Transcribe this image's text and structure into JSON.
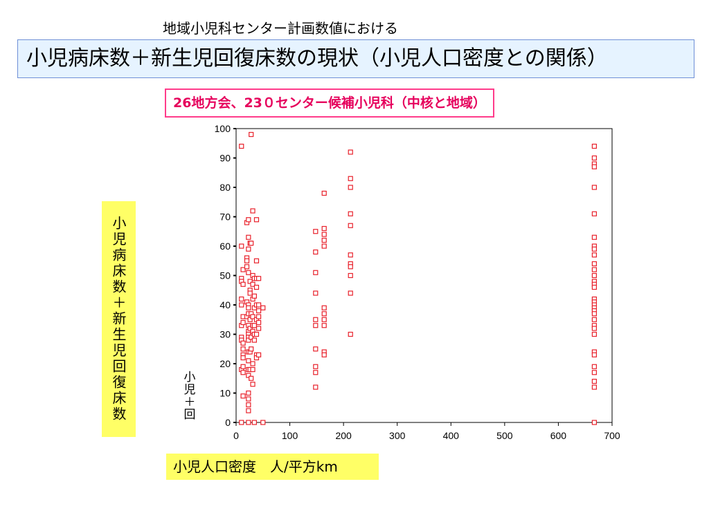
{
  "header": {
    "supertitle": "地域小児科センター計画数値における",
    "title": "小児病床数＋新生児回復床数の現状（小児人口密度との関係）",
    "subtitle": "26地方会、23０センター候補小児科（中核と地域）"
  },
  "labels": {
    "ylabel": "小児病床数＋新生児回復床数",
    "ylabel_inner": "小児＋回",
    "xlabel": "小児人口密度　人/平方km"
  },
  "colors": {
    "marker": "#e8202a",
    "title_bg": "#e6f3ff",
    "subtitle_text": "#e6005c",
    "label_bg": "#ffff66"
  },
  "chart_data": {
    "type": "scatter",
    "xlim": [
      0,
      700
    ],
    "ylim": [
      0,
      100
    ],
    "xticks": [
      "0",
      "100",
      "200",
      "300",
      "400",
      "500",
      "600",
      "700"
    ],
    "yticks": [
      "0",
      "10",
      "20",
      "30",
      "40",
      "50",
      "60",
      "70",
      "80",
      "90",
      "100"
    ],
    "grid": false,
    "marker": "open-square",
    "series": [
      {
        "points": [
          [
            10,
            94
          ],
          [
            10,
            60
          ],
          [
            10,
            49
          ],
          [
            10,
            48
          ],
          [
            10,
            42
          ],
          [
            10,
            40
          ],
          [
            10,
            33
          ],
          [
            10,
            29
          ],
          [
            10,
            28
          ],
          [
            10,
            18
          ],
          [
            10,
            0
          ],
          [
            13,
            52
          ],
          [
            13,
            47
          ],
          [
            13,
            36
          ],
          [
            13,
            34
          ],
          [
            13,
            27
          ],
          [
            13,
            25
          ],
          [
            13,
            23
          ],
          [
            13,
            22
          ],
          [
            13,
            19
          ],
          [
            13,
            17
          ],
          [
            13,
            9
          ],
          [
            20,
            68
          ],
          [
            20,
            56
          ],
          [
            20,
            55
          ],
          [
            20,
            53
          ],
          [
            20,
            41
          ],
          [
            20,
            36
          ],
          [
            23,
            69
          ],
          [
            23,
            63
          ],
          [
            23,
            59
          ],
          [
            23,
            51
          ],
          [
            23,
            40
          ],
          [
            23,
            39
          ],
          [
            23,
            37
          ],
          [
            23,
            33
          ],
          [
            23,
            31
          ],
          [
            23,
            30
          ],
          [
            23,
            29
          ],
          [
            23,
            28
          ],
          [
            23,
            24
          ],
          [
            23,
            21
          ],
          [
            23,
            18
          ],
          [
            23,
            16
          ],
          [
            23,
            10
          ],
          [
            23,
            8
          ],
          [
            23,
            6
          ],
          [
            23,
            4
          ],
          [
            23,
            0
          ],
          [
            26,
            61
          ],
          [
            26,
            48
          ],
          [
            26,
            45
          ],
          [
            26,
            44
          ],
          [
            26,
            35
          ],
          [
            26,
            32
          ],
          [
            26,
            24
          ],
          [
            26,
            18
          ],
          [
            28,
            98
          ],
          [
            28,
            61
          ],
          [
            28,
            37
          ],
          [
            28,
            29
          ],
          [
            28,
            25
          ],
          [
            28,
            15
          ],
          [
            31,
            72
          ],
          [
            31,
            50
          ],
          [
            31,
            47
          ],
          [
            31,
            42
          ],
          [
            31,
            36
          ],
          [
            31,
            33
          ],
          [
            31,
            31
          ],
          [
            31,
            20
          ],
          [
            31,
            18
          ],
          [
            31,
            13
          ],
          [
            34,
            49
          ],
          [
            34,
            43
          ],
          [
            34,
            39
          ],
          [
            34,
            33
          ],
          [
            34,
            30
          ],
          [
            34,
            28
          ],
          [
            34,
            0
          ],
          [
            38,
            69
          ],
          [
            38,
            55
          ],
          [
            38,
            49
          ],
          [
            38,
            46
          ],
          [
            38,
            40
          ],
          [
            38,
            35
          ],
          [
            38,
            30
          ],
          [
            38,
            23
          ],
          [
            38,
            22
          ],
          [
            42,
            49
          ],
          [
            42,
            40
          ],
          [
            42,
            38
          ],
          [
            42,
            36
          ],
          [
            42,
            34
          ],
          [
            42,
            32
          ],
          [
            42,
            23
          ],
          [
            50,
            39
          ],
          [
            50,
            0
          ],
          [
            148,
            65
          ],
          [
            148,
            58
          ],
          [
            148,
            51
          ],
          [
            148,
            44
          ],
          [
            148,
            35
          ],
          [
            148,
            33
          ],
          [
            148,
            25
          ],
          [
            148,
            19
          ],
          [
            148,
            17
          ],
          [
            148,
            12
          ],
          [
            164,
            78
          ],
          [
            164,
            66
          ],
          [
            164,
            64
          ],
          [
            164,
            62
          ],
          [
            164,
            60
          ],
          [
            164,
            39
          ],
          [
            164,
            37
          ],
          [
            164,
            35
          ],
          [
            164,
            33
          ],
          [
            164,
            24
          ],
          [
            164,
            23
          ],
          [
            213,
            92
          ],
          [
            213,
            83
          ],
          [
            213,
            80
          ],
          [
            213,
            71
          ],
          [
            213,
            67
          ],
          [
            213,
            57
          ],
          [
            213,
            54
          ],
          [
            213,
            53
          ],
          [
            213,
            50
          ],
          [
            213,
            44
          ],
          [
            213,
            30
          ],
          [
            667,
            94
          ],
          [
            667,
            90
          ],
          [
            667,
            88
          ],
          [
            667,
            87
          ],
          [
            667,
            80
          ],
          [
            667,
            71
          ],
          [
            667,
            63
          ],
          [
            667,
            60
          ],
          [
            667,
            59
          ],
          [
            667,
            57
          ],
          [
            667,
            54
          ],
          [
            667,
            52
          ],
          [
            667,
            50
          ],
          [
            667,
            48
          ],
          [
            667,
            47
          ],
          [
            667,
            46
          ],
          [
            667,
            42
          ],
          [
            667,
            41
          ],
          [
            667,
            40
          ],
          [
            667,
            39
          ],
          [
            667,
            38
          ],
          [
            667,
            37
          ],
          [
            667,
            35
          ],
          [
            667,
            33
          ],
          [
            667,
            32
          ],
          [
            667,
            30
          ],
          [
            667,
            24
          ],
          [
            667,
            23
          ],
          [
            667,
            19
          ],
          [
            667,
            17
          ],
          [
            667,
            14
          ],
          [
            667,
            12
          ],
          [
            667,
            0
          ]
        ]
      }
    ]
  }
}
